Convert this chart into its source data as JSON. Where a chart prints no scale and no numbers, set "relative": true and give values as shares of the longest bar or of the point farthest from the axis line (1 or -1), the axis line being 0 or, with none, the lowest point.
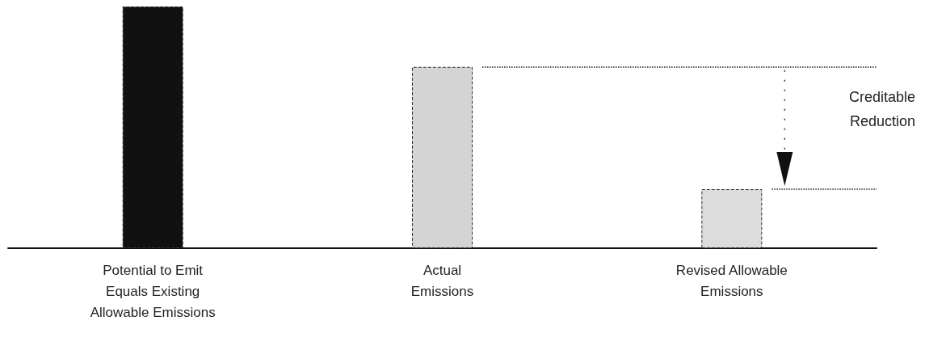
{
  "chart_data": {
    "type": "bar",
    "relative": true,
    "categories": [
      "Potential to Emit\nEquals Existing\nAllowable Emissions",
      "Actual\nEmissions",
      "Revised Allowable\nEmissions"
    ],
    "values": [
      1,
      0.75,
      0.244
    ],
    "colors": [
      "#111111",
      "#d4d4d4",
      "#dcdcdc"
    ],
    "ref_lines": [
      {
        "axis": "y",
        "value": 0.75,
        "color": "#222222",
        "line_style": "dotted"
      },
      {
        "axis": "y",
        "value": 0.244,
        "color": "#222222",
        "line_style": "dotted"
      }
    ],
    "annotations": [
      "Creditable\nReduction"
    ]
  }
}
